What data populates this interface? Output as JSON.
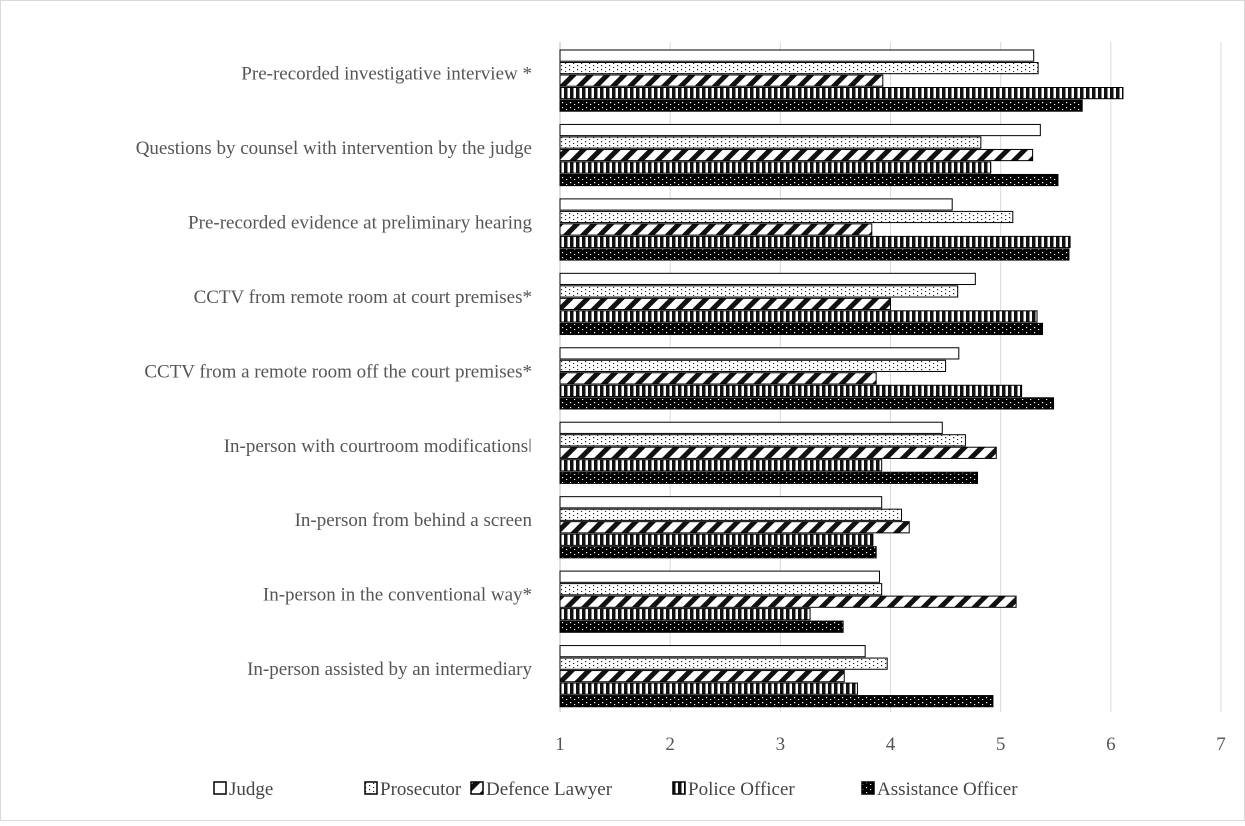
{
  "chart_data": {
    "type": "bar",
    "orientation": "horizontal",
    "title": "",
    "xlabel": "",
    "ylabel": "",
    "xlim": [
      1,
      7
    ],
    "x_ticks": [
      "1",
      "2",
      "3",
      "4",
      "5",
      "6",
      "7"
    ],
    "grid": "vertical",
    "legend_position": "bottom",
    "categories": [
      "Pre-recorded investigative interview *",
      "Questions by counsel with intervention by the judge",
      "Pre-recorded evidence at preliminary hearing",
      "CCTV from remote room at court premises*",
      "CCTV from a remote room off the court premises*",
      "In-person with courtroom modificationsǀ",
      "In-person from behind a screen",
      "In-person in the conventional way*",
      "In-person assisted by an intermediary"
    ],
    "series": [
      {
        "name": "Judge",
        "pattern": "plain",
        "values": [
          5.3,
          5.36,
          4.56,
          4.77,
          4.62,
          4.47,
          3.92,
          3.9,
          3.77
        ]
      },
      {
        "name": "Prosecutor",
        "pattern": "dots",
        "values": [
          5.34,
          4.82,
          5.11,
          4.61,
          4.5,
          4.68,
          4.1,
          3.92,
          3.97
        ]
      },
      {
        "name": "Defence Lawyer",
        "pattern": "diagonal",
        "values": [
          3.93,
          5.29,
          3.83,
          4.0,
          3.87,
          4.96,
          4.17,
          5.14,
          3.58
        ]
      },
      {
        "name": "Police Officer",
        "pattern": "vertical",
        "values": [
          6.11,
          4.91,
          5.63,
          5.33,
          5.19,
          3.92,
          3.84,
          3.27,
          3.7
        ]
      },
      {
        "name": "Assistance Officer",
        "pattern": "dark",
        "values": [
          5.74,
          5.52,
          5.62,
          5.38,
          5.48,
          4.79,
          3.87,
          3.57,
          4.93
        ]
      }
    ]
  }
}
